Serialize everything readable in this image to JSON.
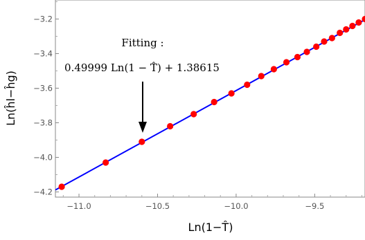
{
  "chart_data": {
    "type": "scatter",
    "xlabel": "Ln(1−T̂)",
    "ylabel": "Ln(ĥl−ĥg)",
    "xlim": [
      -11.15,
      -9.18
    ],
    "ylim": [
      -4.23,
      -3.09
    ],
    "xticks": [
      -11.0,
      -10.5,
      -10.0,
      -9.5
    ],
    "xtick_labels": [
      "−11.0",
      "−10.5",
      "−10.0",
      "−9.5"
    ],
    "yticks": [
      -4.2,
      -4.0,
      -3.8,
      -3.6,
      -3.4,
      -3.2
    ],
    "ytick_labels": [
      "−4.2",
      "−4.0",
      "−3.8",
      "−3.6",
      "−3.4",
      "−3.2"
    ],
    "fit": {
      "slope": 0.49999,
      "intercept": 1.38615,
      "color": "#0000ff"
    },
    "points_color": "#ff0000",
    "series": [
      {
        "values": [
          [
            -11.11,
            -4.17
          ],
          [
            -10.83,
            -4.03
          ],
          [
            -10.6,
            -3.91
          ],
          [
            -10.42,
            -3.82
          ],
          [
            -10.27,
            -3.75
          ],
          [
            -10.14,
            -3.68
          ],
          [
            -10.03,
            -3.63
          ],
          [
            -9.93,
            -3.58
          ],
          [
            -9.84,
            -3.53
          ],
          [
            -9.76,
            -3.49
          ],
          [
            -9.68,
            -3.45
          ],
          [
            -9.61,
            -3.42
          ],
          [
            -9.55,
            -3.39
          ],
          [
            -9.49,
            -3.36
          ],
          [
            -9.44,
            -3.33
          ],
          [
            -9.39,
            -3.31
          ],
          [
            -9.34,
            -3.28
          ],
          [
            -9.3,
            -3.26
          ],
          [
            -9.26,
            -3.24
          ],
          [
            -9.22,
            -3.22
          ],
          [
            -9.18,
            -3.2
          ]
        ]
      }
    ],
    "annotation": {
      "line1": "Fitting :",
      "line2": "0.49999 Ln(1 − T̂) + 1.38615",
      "arrow_points_to": [
        -10.6,
        -3.91
      ]
    }
  }
}
